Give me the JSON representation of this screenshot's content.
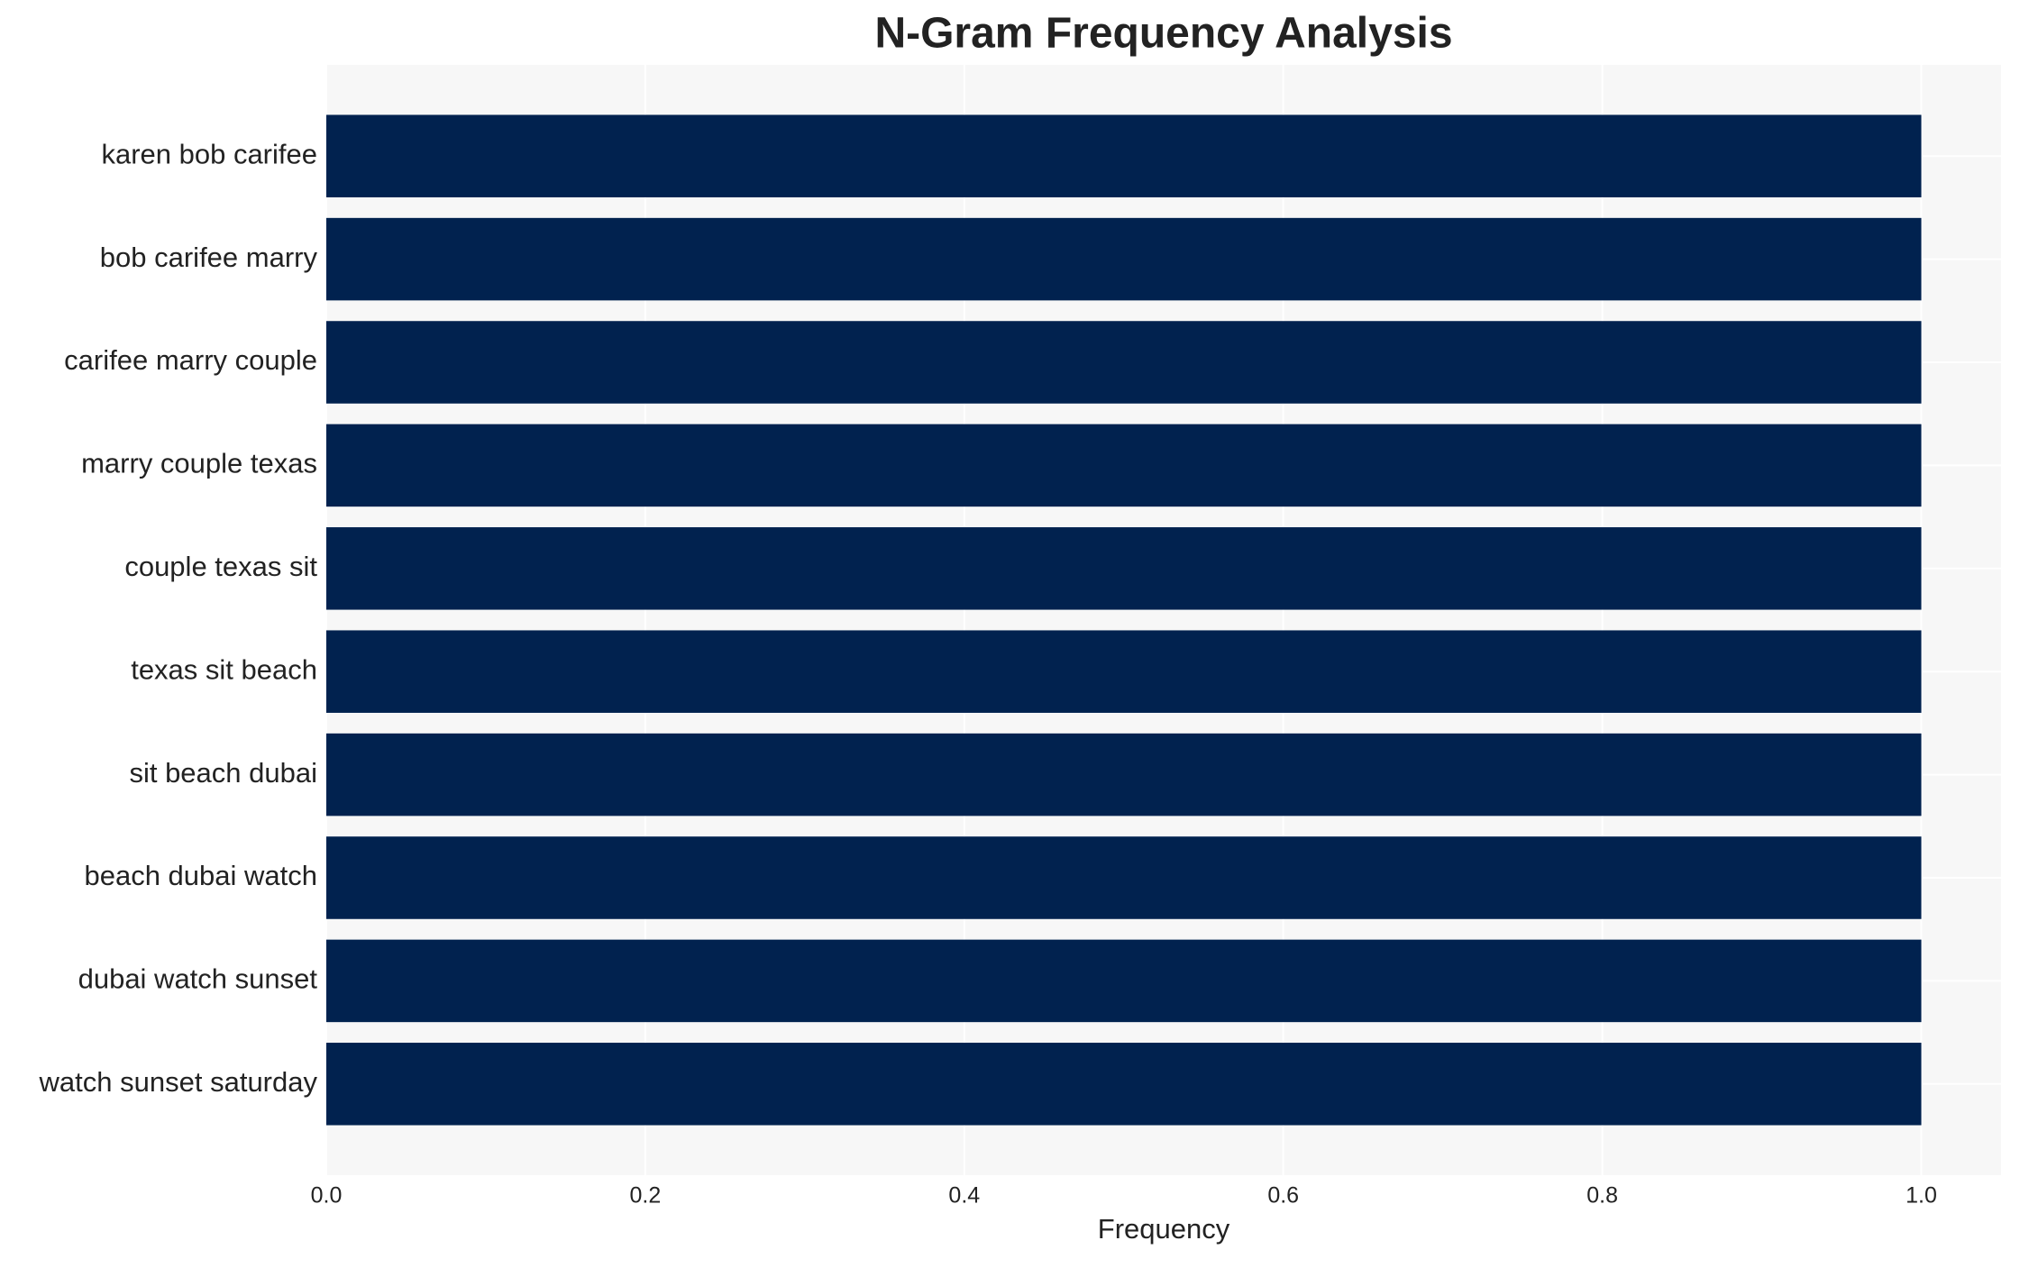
{
  "chart_data": {
    "type": "bar",
    "orientation": "horizontal",
    "title": "N-Gram Frequency Analysis",
    "x_label": "Frequency",
    "categories": [
      "karen bob carifee",
      "bob carifee marry",
      "carifee marry couple",
      "marry couple texas",
      "couple texas sit",
      "texas sit beach",
      "sit beach dubai",
      "beach dubai watch",
      "dubai watch sunset",
      "watch sunset saturday"
    ],
    "values": [
      1,
      1,
      1,
      1,
      1,
      1,
      1,
      1,
      1,
      1
    ],
    "color": "#01224f",
    "xlim": [
      0,
      1.05
    ],
    "xticks": [
      {
        "value": 0,
        "label": "0.0"
      },
      0.2,
      0.4,
      0.6,
      0.8,
      {
        "value": 1,
        "label": "1.0"
      }
    ],
    "grid": true
  }
}
